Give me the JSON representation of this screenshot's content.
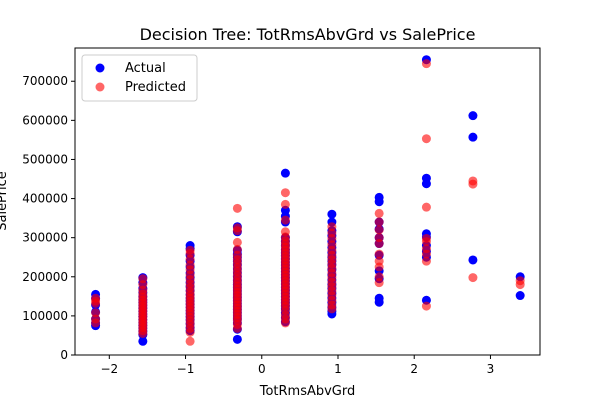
{
  "chart_data": {
    "type": "scatter",
    "title": "Decision Tree: TotRmsAbvGrd vs SalePrice",
    "xlabel": "TotRmsAbvGrd",
    "ylabel": "SalePrice",
    "xlim": [
      -2.45,
      3.65
    ],
    "ylim": [
      0,
      785000
    ],
    "xticks": [
      -2,
      -1,
      0,
      1,
      2,
      3
    ],
    "yticks": [
      0,
      100000,
      200000,
      300000,
      400000,
      500000,
      600000,
      700000
    ],
    "grid": false,
    "legend_position": "upper-left",
    "series": [
      {
        "name": "Actual",
        "color": "#0000ff",
        "alpha": 1.0,
        "points": [
          [
            -2.18,
            155000
          ],
          [
            -2.18,
            145000
          ],
          [
            -2.18,
            128000
          ],
          [
            -2.18,
            110000
          ],
          [
            -2.18,
            92000
          ],
          [
            -2.18,
            82000
          ],
          [
            -2.18,
            75000
          ],
          [
            -1.56,
            198000
          ],
          [
            -1.56,
            185000
          ],
          [
            -1.56,
            170000
          ],
          [
            -1.56,
            160000
          ],
          [
            -1.56,
            150000
          ],
          [
            -1.56,
            142000
          ],
          [
            -1.56,
            135000
          ],
          [
            -1.56,
            128000
          ],
          [
            -1.56,
            120000
          ],
          [
            -1.56,
            112000
          ],
          [
            -1.56,
            105000
          ],
          [
            -1.56,
            98000
          ],
          [
            -1.56,
            90000
          ],
          [
            -1.56,
            82000
          ],
          [
            -1.56,
            75000
          ],
          [
            -1.56,
            68000
          ],
          [
            -1.56,
            60000
          ],
          [
            -1.56,
            52000
          ],
          [
            -1.56,
            35000
          ],
          [
            -0.94,
            280000
          ],
          [
            -0.94,
            272000
          ],
          [
            -0.94,
            255000
          ],
          [
            -0.94,
            240000
          ],
          [
            -0.94,
            225000
          ],
          [
            -0.94,
            210000
          ],
          [
            -0.94,
            198000
          ],
          [
            -0.94,
            186000
          ],
          [
            -0.94,
            175000
          ],
          [
            -0.94,
            165000
          ],
          [
            -0.94,
            155000
          ],
          [
            -0.94,
            146000
          ],
          [
            -0.94,
            138000
          ],
          [
            -0.94,
            130000
          ],
          [
            -0.94,
            122000
          ],
          [
            -0.94,
            114000
          ],
          [
            -0.94,
            106000
          ],
          [
            -0.94,
            98000
          ],
          [
            -0.94,
            90000
          ],
          [
            -0.94,
            80000
          ],
          [
            -0.94,
            70000
          ],
          [
            -0.94,
            62000
          ],
          [
            -0.32,
            328000
          ],
          [
            -0.32,
            315000
          ],
          [
            -0.32,
            268000
          ],
          [
            -0.32,
            258000
          ],
          [
            -0.32,
            250000
          ],
          [
            -0.32,
            240000
          ],
          [
            -0.32,
            230000
          ],
          [
            -0.32,
            220000
          ],
          [
            -0.32,
            210000
          ],
          [
            -0.32,
            200000
          ],
          [
            -0.32,
            190000
          ],
          [
            -0.32,
            180000
          ],
          [
            -0.32,
            172000
          ],
          [
            -0.32,
            164000
          ],
          [
            -0.32,
            156000
          ],
          [
            -0.32,
            148000
          ],
          [
            -0.32,
            140000
          ],
          [
            -0.32,
            132000
          ],
          [
            -0.32,
            124000
          ],
          [
            -0.32,
            116000
          ],
          [
            -0.32,
            108000
          ],
          [
            -0.32,
            100000
          ],
          [
            -0.32,
            92000
          ],
          [
            -0.32,
            82000
          ],
          [
            -0.32,
            66000
          ],
          [
            -0.32,
            40000
          ],
          [
            0.31,
            465000
          ],
          [
            0.31,
            370000
          ],
          [
            0.31,
            355000
          ],
          [
            0.31,
            340000
          ],
          [
            0.31,
            300000
          ],
          [
            0.31,
            290000
          ],
          [
            0.31,
            280000
          ],
          [
            0.31,
            270000
          ],
          [
            0.31,
            262000
          ],
          [
            0.31,
            254000
          ],
          [
            0.31,
            246000
          ],
          [
            0.31,
            238000
          ],
          [
            0.31,
            230000
          ],
          [
            0.31,
            222000
          ],
          [
            0.31,
            214000
          ],
          [
            0.31,
            206000
          ],
          [
            0.31,
            198000
          ],
          [
            0.31,
            190000
          ],
          [
            0.31,
            182000
          ],
          [
            0.31,
            174000
          ],
          [
            0.31,
            166000
          ],
          [
            0.31,
            158000
          ],
          [
            0.31,
            150000
          ],
          [
            0.31,
            142000
          ],
          [
            0.31,
            134000
          ],
          [
            0.31,
            126000
          ],
          [
            0.31,
            118000
          ],
          [
            0.31,
            108000
          ],
          [
            0.31,
            96000
          ],
          [
            0.31,
            85000
          ],
          [
            0.92,
            360000
          ],
          [
            0.92,
            340000
          ],
          [
            0.92,
            318000
          ],
          [
            0.92,
            305000
          ],
          [
            0.92,
            290000
          ],
          [
            0.92,
            275000
          ],
          [
            0.92,
            262000
          ],
          [
            0.92,
            250000
          ],
          [
            0.92,
            240000
          ],
          [
            0.92,
            230000
          ],
          [
            0.92,
            218000
          ],
          [
            0.92,
            205000
          ],
          [
            0.92,
            192000
          ],
          [
            0.92,
            180000
          ],
          [
            0.92,
            170000
          ],
          [
            0.92,
            158000
          ],
          [
            0.92,
            146000
          ],
          [
            0.92,
            134000
          ],
          [
            0.92,
            122000
          ],
          [
            0.92,
            112000
          ],
          [
            0.92,
            105000
          ],
          [
            1.54,
            403000
          ],
          [
            1.54,
            392000
          ],
          [
            1.54,
            340000
          ],
          [
            1.54,
            322000
          ],
          [
            1.54,
            300000
          ],
          [
            1.54,
            285000
          ],
          [
            1.54,
            255000
          ],
          [
            1.54,
            215000
          ],
          [
            1.54,
            195000
          ],
          [
            1.54,
            145000
          ],
          [
            1.54,
            135000
          ],
          [
            2.16,
            755000
          ],
          [
            2.16,
            452000
          ],
          [
            2.16,
            438000
          ],
          [
            2.16,
            310000
          ],
          [
            2.16,
            302000
          ],
          [
            2.16,
            280000
          ],
          [
            2.16,
            265000
          ],
          [
            2.16,
            250000
          ],
          [
            2.16,
            140000
          ],
          [
            2.77,
            612000
          ],
          [
            2.77,
            557000
          ],
          [
            2.77,
            243000
          ],
          [
            3.39,
            200000
          ],
          [
            3.39,
            152000
          ]
        ]
      },
      {
        "name": "Predicted",
        "color": "#ff0000",
        "alpha": 0.6,
        "points": [
          [
            -2.18,
            145000
          ],
          [
            -2.18,
            138000
          ],
          [
            -2.18,
            132000
          ],
          [
            -2.18,
            108000
          ],
          [
            -2.18,
            92000
          ],
          [
            -2.18,
            82000
          ],
          [
            -1.56,
            195000
          ],
          [
            -1.56,
            180000
          ],
          [
            -1.56,
            166000
          ],
          [
            -1.56,
            156000
          ],
          [
            -1.56,
            148000
          ],
          [
            -1.56,
            140000
          ],
          [
            -1.56,
            133000
          ],
          [
            -1.56,
            126000
          ],
          [
            -1.56,
            119000
          ],
          [
            -1.56,
            112000
          ],
          [
            -1.56,
            105000
          ],
          [
            -1.56,
            98000
          ],
          [
            -1.56,
            91000
          ],
          [
            -1.56,
            84000
          ],
          [
            -1.56,
            77000
          ],
          [
            -1.56,
            70000
          ],
          [
            -1.56,
            62000
          ],
          [
            -1.56,
            55000
          ],
          [
            -0.94,
            268000
          ],
          [
            -0.94,
            260000
          ],
          [
            -0.94,
            245000
          ],
          [
            -0.94,
            230000
          ],
          [
            -0.94,
            218000
          ],
          [
            -0.94,
            205000
          ],
          [
            -0.94,
            193000
          ],
          [
            -0.94,
            182000
          ],
          [
            -0.94,
            172000
          ],
          [
            -0.94,
            162000
          ],
          [
            -0.94,
            153000
          ],
          [
            -0.94,
            145000
          ],
          [
            -0.94,
            137000
          ],
          [
            -0.94,
            129000
          ],
          [
            -0.94,
            121000
          ],
          [
            -0.94,
            113000
          ],
          [
            -0.94,
            105000
          ],
          [
            -0.94,
            96000
          ],
          [
            -0.94,
            87000
          ],
          [
            -0.94,
            78000
          ],
          [
            -0.94,
            68000
          ],
          [
            -0.94,
            58000
          ],
          [
            -0.94,
            35000
          ],
          [
            -0.32,
            375000
          ],
          [
            -0.32,
            325000
          ],
          [
            -0.32,
            318000
          ],
          [
            -0.32,
            288000
          ],
          [
            -0.32,
            270000
          ],
          [
            -0.32,
            255000
          ],
          [
            -0.32,
            244000
          ],
          [
            -0.32,
            234000
          ],
          [
            -0.32,
            224000
          ],
          [
            -0.32,
            214000
          ],
          [
            -0.32,
            204000
          ],
          [
            -0.32,
            194000
          ],
          [
            -0.32,
            185000
          ],
          [
            -0.32,
            176000
          ],
          [
            -0.32,
            168000
          ],
          [
            -0.32,
            160000
          ],
          [
            -0.32,
            152000
          ],
          [
            -0.32,
            144000
          ],
          [
            -0.32,
            136000
          ],
          [
            -0.32,
            128000
          ],
          [
            -0.32,
            120000
          ],
          [
            -0.32,
            112000
          ],
          [
            -0.32,
            104000
          ],
          [
            -0.32,
            96000
          ],
          [
            -0.32,
            88000
          ],
          [
            -0.32,
            78000
          ],
          [
            -0.32,
            68000
          ],
          [
            0.31,
            415000
          ],
          [
            0.31,
            385000
          ],
          [
            0.31,
            345000
          ],
          [
            0.31,
            315000
          ],
          [
            0.31,
            302000
          ],
          [
            0.31,
            292000
          ],
          [
            0.31,
            284000
          ],
          [
            0.31,
            276000
          ],
          [
            0.31,
            268000
          ],
          [
            0.31,
            260000
          ],
          [
            0.31,
            252000
          ],
          [
            0.31,
            244000
          ],
          [
            0.31,
            236000
          ],
          [
            0.31,
            228000
          ],
          [
            0.31,
            220000
          ],
          [
            0.31,
            212000
          ],
          [
            0.31,
            204000
          ],
          [
            0.31,
            196000
          ],
          [
            0.31,
            188000
          ],
          [
            0.31,
            180000
          ],
          [
            0.31,
            172000
          ],
          [
            0.31,
            164000
          ],
          [
            0.31,
            156000
          ],
          [
            0.31,
            148000
          ],
          [
            0.31,
            140000
          ],
          [
            0.31,
            132000
          ],
          [
            0.31,
            124000
          ],
          [
            0.31,
            114000
          ],
          [
            0.31,
            102000
          ],
          [
            0.31,
            92000
          ],
          [
            0.31,
            82000
          ],
          [
            0.92,
            328000
          ],
          [
            0.92,
            312000
          ],
          [
            0.92,
            298000
          ],
          [
            0.92,
            282000
          ],
          [
            0.92,
            268000
          ],
          [
            0.92,
            255000
          ],
          [
            0.92,
            244000
          ],
          [
            0.92,
            233000
          ],
          [
            0.92,
            222000
          ],
          [
            0.92,
            210000
          ],
          [
            0.92,
            198000
          ],
          [
            0.92,
            186000
          ],
          [
            0.92,
            175000
          ],
          [
            0.92,
            164000
          ],
          [
            0.92,
            152000
          ],
          [
            0.92,
            140000
          ],
          [
            0.92,
            128000
          ],
          [
            0.92,
            118000
          ],
          [
            1.54,
            362000
          ],
          [
            1.54,
            340000
          ],
          [
            1.54,
            320000
          ],
          [
            1.54,
            300000
          ],
          [
            1.54,
            285000
          ],
          [
            1.54,
            258000
          ],
          [
            1.54,
            240000
          ],
          [
            1.54,
            225000
          ],
          [
            1.54,
            200000
          ],
          [
            1.54,
            185000
          ],
          [
            2.16,
            745000
          ],
          [
            2.16,
            553000
          ],
          [
            2.16,
            378000
          ],
          [
            2.16,
            298000
          ],
          [
            2.16,
            290000
          ],
          [
            2.16,
            272000
          ],
          [
            2.16,
            258000
          ],
          [
            2.16,
            240000
          ],
          [
            2.16,
            125000
          ],
          [
            2.77,
            445000
          ],
          [
            2.77,
            437000
          ],
          [
            2.77,
            198000
          ],
          [
            3.39,
            190000
          ],
          [
            3.39,
            180000
          ]
        ]
      }
    ]
  }
}
